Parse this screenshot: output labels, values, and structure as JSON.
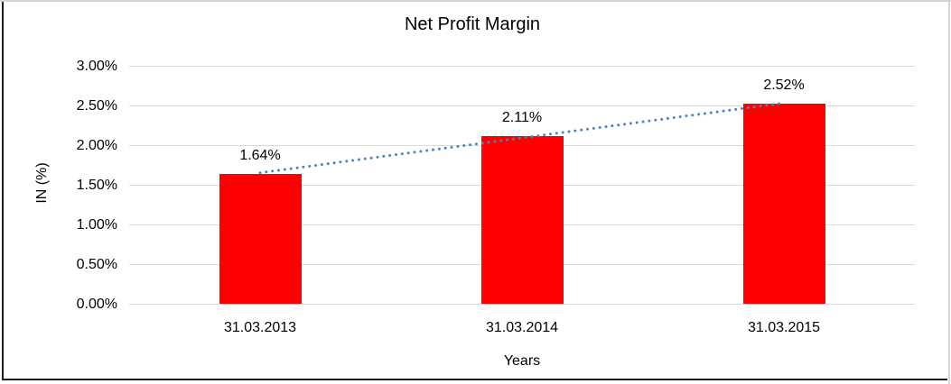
{
  "chart_data": {
    "type": "bar",
    "title": "Net Profit Margin",
    "xlabel": "Years",
    "ylabel": "IN (%)",
    "categories": [
      "31.03.2013",
      "31.03.2014",
      "31.03.2015"
    ],
    "values": [
      1.64,
      2.11,
      2.52
    ],
    "data_labels": [
      "1.64%",
      "2.11%",
      "2.52%"
    ],
    "ylim": [
      0,
      3
    ],
    "ytick_step": 0.5,
    "ytick_labels": [
      "0.00%",
      "0.50%",
      "1.00%",
      "1.50%",
      "2.00%",
      "2.50%",
      "3.00%"
    ],
    "grid": true,
    "legend_position": "none",
    "trendline": {
      "type": "linear",
      "style": "dotted"
    },
    "colors": {
      "bar": "#ff0000",
      "trendline": "#4e82c6",
      "gridline": "#d9d9d9",
      "text": "#000000"
    }
  }
}
